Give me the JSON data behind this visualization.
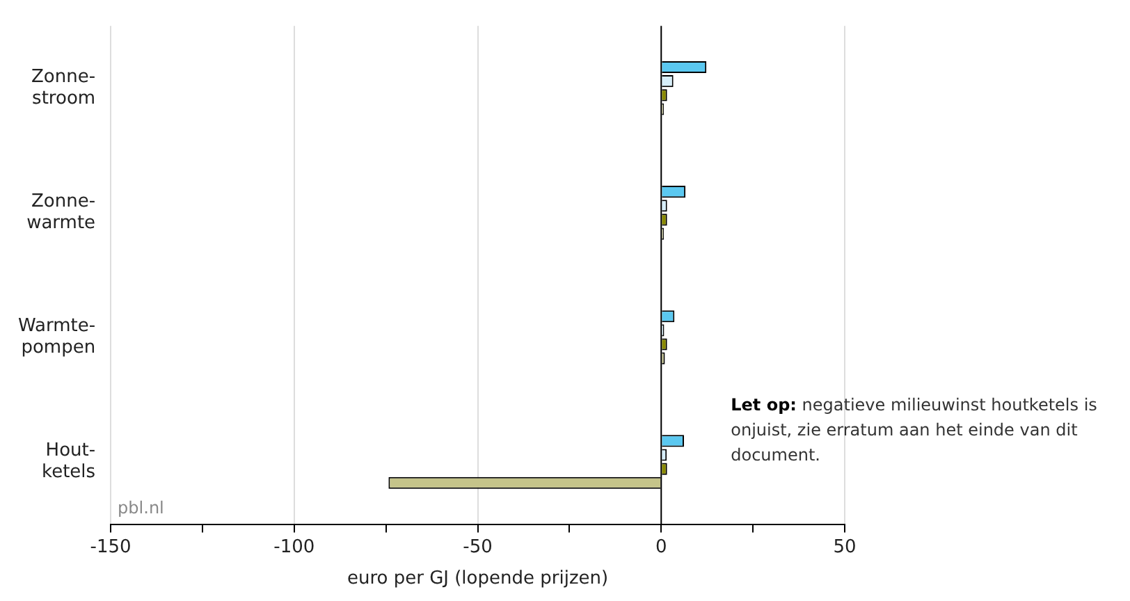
{
  "chart_data": {
    "type": "bar",
    "orientation": "horizontal",
    "categories": [
      "Zonne-stroom",
      "Zonne-warmte",
      "Warmte-pompen",
      "Hout-ketels"
    ],
    "series": [
      {
        "color": "#5bc8f0",
        "values": [
          12.3,
          6.6,
          3.6,
          6.2
        ]
      },
      {
        "color": "#d6eef9",
        "values": [
          3.3,
          1.6,
          0.8,
          1.5
        ]
      },
      {
        "color": "#8a8a00",
        "values": [
          1.6,
          1.6,
          1.6,
          1.6
        ]
      },
      {
        "color": "#c5c48a",
        "values": [
          0.7,
          0.7,
          1.0,
          -74.3
        ]
      }
    ],
    "xlim": [
      -150,
      50
    ],
    "xticks": [
      -150,
      {
        "value": -125,
        "label": null
      },
      -100,
      {
        "value": -75,
        "label": null
      },
      -50,
      {
        "value": -25,
        "label": null
      },
      0,
      {
        "value": 25,
        "label": null
      },
      50
    ],
    "xlabel": "euro per GJ (lopende prijzen)",
    "grid": "x",
    "legend": false,
    "ref_lines": [
      {
        "axis": "x",
        "value": 0,
        "color": "#000000"
      }
    ],
    "annotations": [
      "pbl.nl",
      "Let op: negatieve milieuwinst houtketels is onjuist, zie erratum aan het einde van dit document."
    ]
  }
}
